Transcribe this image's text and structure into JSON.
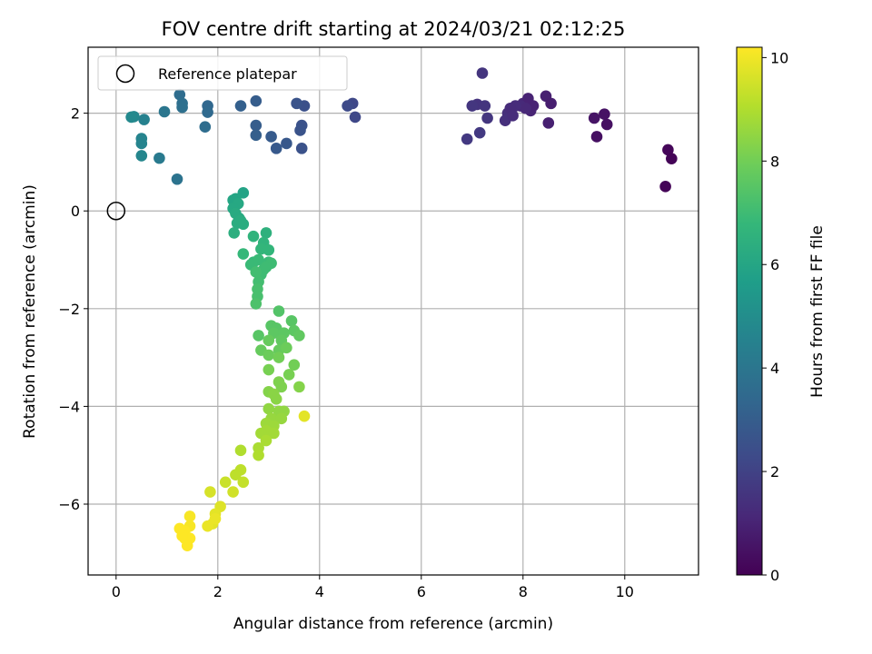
{
  "chart_data": {
    "type": "scatter",
    "title": "FOV centre drift starting at 2024/03/21 02:12:25",
    "xlabel": "Angular distance from reference (arcmin)",
    "ylabel": "Rotation from reference (arcmin)",
    "xlim": [
      -0.55,
      11.45
    ],
    "ylim": [
      -7.45,
      3.35
    ],
    "xticks": [
      0,
      2,
      4,
      6,
      8,
      10
    ],
    "yticks": [
      -6,
      -4,
      -2,
      0,
      2
    ],
    "xtick_labels": [
      "0",
      "2",
      "4",
      "6",
      "8",
      "10"
    ],
    "ytick_labels": [
      "−6",
      "−4",
      "−2",
      "0",
      "2"
    ],
    "grid": true,
    "legend": {
      "position": "top-left",
      "entries": [
        "Reference platepar"
      ]
    },
    "reference_point": {
      "x": 0,
      "y": 0,
      "marker": "open-circle"
    },
    "colorbar": {
      "label": "Hours from first FF file",
      "range": [
        0,
        10.2
      ],
      "ticks": [
        0,
        2,
        4,
        6,
        8,
        10
      ],
      "tick_labels": [
        "0",
        "2",
        "4",
        "6",
        "8",
        "10"
      ],
      "colormap": "viridis"
    },
    "points": [
      [
        10.8,
        0.5,
        0.1
      ],
      [
        10.85,
        1.25,
        0.15
      ],
      [
        10.92,
        1.07,
        0.1
      ],
      [
        9.45,
        1.52,
        0.4
      ],
      [
        9.6,
        1.98,
        0.5
      ],
      [
        9.65,
        1.77,
        0.45
      ],
      [
        9.4,
        1.9,
        0.55
      ],
      [
        8.45,
        2.35,
        0.9
      ],
      [
        8.55,
        2.2,
        0.85
      ],
      [
        8.5,
        1.8,
        0.9
      ],
      [
        8.0,
        2.2,
        1.1
      ],
      [
        8.1,
        2.3,
        1.0
      ],
      [
        8.15,
        2.05,
        1.05
      ],
      [
        7.95,
        2.15,
        1.2
      ],
      [
        8.2,
        2.15,
        1.0
      ],
      [
        8.05,
        2.1,
        1.15
      ],
      [
        7.85,
        2.15,
        1.3
      ],
      [
        7.7,
        2.0,
        1.35
      ],
      [
        7.75,
        2.1,
        1.25
      ],
      [
        7.65,
        1.85,
        1.4
      ],
      [
        7.8,
        1.95,
        1.3
      ],
      [
        7.2,
        2.82,
        1.55
      ],
      [
        7.1,
        2.18,
        1.5
      ],
      [
        7.0,
        2.15,
        1.6
      ],
      [
        7.3,
        1.9,
        1.6
      ],
      [
        7.25,
        2.15,
        1.55
      ],
      [
        7.15,
        1.6,
        1.7
      ],
      [
        6.9,
        1.47,
        1.7
      ],
      [
        4.7,
        1.92,
        2.2
      ],
      [
        4.65,
        2.2,
        2.2
      ],
      [
        4.55,
        2.15,
        2.3
      ],
      [
        3.7,
        2.15,
        2.5
      ],
      [
        3.55,
        2.2,
        2.6
      ],
      [
        3.65,
        1.75,
        2.55
      ],
      [
        3.62,
        1.65,
        2.6
      ],
      [
        3.65,
        1.28,
        2.55
      ],
      [
        3.35,
        1.38,
        2.8
      ],
      [
        3.15,
        1.28,
        2.85
      ],
      [
        3.05,
        1.52,
        2.9
      ],
      [
        2.75,
        2.25,
        3.0
      ],
      [
        2.75,
        1.75,
        3.0
      ],
      [
        2.75,
        1.55,
        3.05
      ],
      [
        2.45,
        2.15,
        3.1
      ],
      [
        1.8,
        2.15,
        3.4
      ],
      [
        1.8,
        2.02,
        3.5
      ],
      [
        1.75,
        1.72,
        3.6
      ],
      [
        1.25,
        2.38,
        3.6
      ],
      [
        1.3,
        2.2,
        3.7
      ],
      [
        1.3,
        2.12,
        3.75
      ],
      [
        1.2,
        0.65,
        3.9
      ],
      [
        0.95,
        2.03,
        4.0
      ],
      [
        0.85,
        1.08,
        4.2
      ],
      [
        0.55,
        1.87,
        4.5
      ],
      [
        0.5,
        1.48,
        4.6
      ],
      [
        0.5,
        1.38,
        4.6
      ],
      [
        0.5,
        1.13,
        4.7
      ],
      [
        0.35,
        1.93,
        4.75
      ],
      [
        0.3,
        1.92,
        4.8
      ],
      [
        2.5,
        0.37,
        5.9
      ],
      [
        2.35,
        0.25,
        6.0
      ],
      [
        2.3,
        0.22,
        6.0
      ],
      [
        2.4,
        0.15,
        6.1
      ],
      [
        2.3,
        0.05,
        6.1
      ],
      [
        2.35,
        -0.05,
        6.2
      ],
      [
        2.42,
        -0.15,
        6.2
      ],
      [
        2.38,
        -0.25,
        6.3
      ],
      [
        2.5,
        -0.27,
        6.3
      ],
      [
        2.32,
        -0.45,
        6.4
      ],
      [
        2.45,
        -0.2,
        6.3
      ],
      [
        2.95,
        -0.45,
        6.5
      ],
      [
        2.7,
        -0.52,
        6.6
      ],
      [
        2.9,
        -0.65,
        6.6
      ],
      [
        2.85,
        -0.78,
        6.7
      ],
      [
        3.0,
        -0.8,
        6.7
      ],
      [
        2.5,
        -0.88,
        6.8
      ],
      [
        2.7,
        -1.05,
        6.8
      ],
      [
        2.65,
        -1.1,
        6.9
      ],
      [
        2.8,
        -1.0,
        6.9
      ],
      [
        3.0,
        -1.05,
        6.9
      ],
      [
        3.05,
        -1.07,
        7.0
      ],
      [
        2.9,
        -1.2,
        7.0
      ],
      [
        2.85,
        -1.3,
        7.0
      ],
      [
        2.75,
        -1.25,
        7.1
      ],
      [
        2.95,
        -1.15,
        7.0
      ],
      [
        2.8,
        -1.45,
        7.1
      ],
      [
        2.78,
        -1.6,
        7.2
      ],
      [
        2.78,
        -1.75,
        7.2
      ],
      [
        2.75,
        -1.9,
        7.3
      ],
      [
        3.2,
        -2.05,
        7.4
      ],
      [
        3.05,
        -2.35,
        7.5
      ],
      [
        3.15,
        -2.4,
        7.5
      ],
      [
        3.1,
        -2.5,
        7.6
      ],
      [
        3.45,
        -2.25,
        7.5
      ],
      [
        3.3,
        -2.5,
        7.6
      ],
      [
        3.5,
        -2.45,
        7.6
      ],
      [
        3.6,
        -2.55,
        7.7
      ],
      [
        2.8,
        -2.55,
        7.5
      ],
      [
        3.0,
        -2.65,
        7.8
      ],
      [
        3.25,
        -2.65,
        7.7
      ],
      [
        3.2,
        -2.85,
        7.8
      ],
      [
        2.85,
        -2.85,
        7.8
      ],
      [
        3.35,
        -2.8,
        7.9
      ],
      [
        3.0,
        -2.95,
        7.9
      ],
      [
        3.2,
        -3.0,
        8.0
      ],
      [
        3.0,
        -3.25,
        8.1
      ],
      [
        3.5,
        -3.15,
        8.0
      ],
      [
        3.4,
        -3.35,
        8.1
      ],
      [
        3.2,
        -3.5,
        8.2
      ],
      [
        3.25,
        -3.6,
        8.2
      ],
      [
        3.6,
        -3.6,
        8.3
      ],
      [
        3.0,
        -3.7,
        8.3
      ],
      [
        3.1,
        -3.75,
        8.4
      ],
      [
        3.15,
        -3.85,
        8.4
      ],
      [
        3.0,
        -4.05,
        8.5
      ],
      [
        3.2,
        -4.1,
        8.5
      ],
      [
        3.3,
        -4.1,
        8.5
      ],
      [
        3.05,
        -4.25,
        8.6
      ],
      [
        3.25,
        -4.25,
        8.6
      ],
      [
        2.95,
        -4.35,
        8.7
      ],
      [
        3.1,
        -4.4,
        8.7
      ],
      [
        2.95,
        -4.5,
        8.8
      ],
      [
        3.1,
        -4.55,
        8.8
      ],
      [
        2.85,
        -4.55,
        8.8
      ],
      [
        2.8,
        -4.85,
        8.9
      ],
      [
        2.95,
        -4.7,
        8.9
      ],
      [
        2.8,
        -5.0,
        9.0
      ],
      [
        2.45,
        -4.9,
        9.0
      ],
      [
        3.7,
        -4.2,
        9.8
      ],
      [
        2.45,
        -5.3,
        9.2
      ],
      [
        2.5,
        -5.55,
        9.3
      ],
      [
        2.35,
        -5.4,
        9.2
      ],
      [
        2.15,
        -5.55,
        9.4
      ],
      [
        2.3,
        -5.75,
        9.5
      ],
      [
        2.05,
        -6.05,
        9.7
      ],
      [
        1.85,
        -5.75,
        9.6
      ],
      [
        1.95,
        -6.2,
        9.8
      ],
      [
        1.9,
        -6.4,
        9.8
      ],
      [
        1.8,
        -6.45,
        9.9
      ],
      [
        1.95,
        -6.3,
        9.9
      ],
      [
        1.45,
        -6.25,
        10.1
      ],
      [
        1.45,
        -6.45,
        10.1
      ],
      [
        1.35,
        -6.55,
        10.2
      ],
      [
        1.35,
        -6.7,
        10.2
      ],
      [
        1.45,
        -6.7,
        10.2
      ],
      [
        1.4,
        -6.85,
        10.2
      ],
      [
        1.3,
        -6.65,
        10.2
      ],
      [
        1.25,
        -6.5,
        10.2
      ]
    ]
  }
}
